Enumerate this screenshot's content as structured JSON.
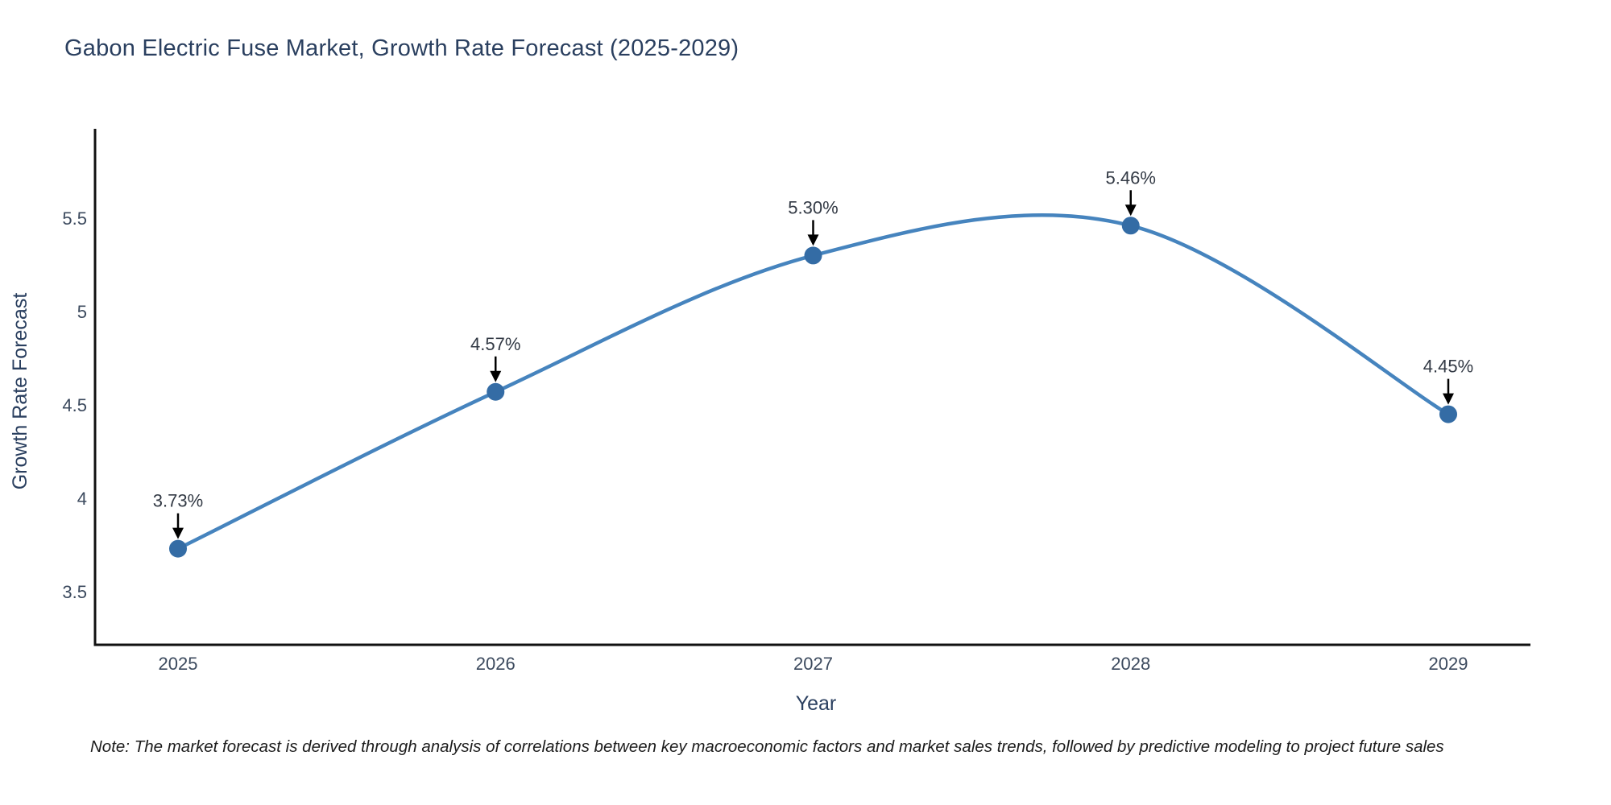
{
  "note": "Note: The market forecast is derived through analysis of correlations between key macroeconomic factors and market sales trends, followed by predictive modeling to project future sales",
  "chart_data": {
    "type": "line",
    "curve": "spline",
    "title": "Gabon Electric Fuse Market, Growth Rate Forecast (2025-2029)",
    "xlabel": "Year",
    "ylabel": "Growth Rate Forecast",
    "x": [
      2025,
      2026,
      2027,
      2028,
      2029
    ],
    "y": [
      3.73,
      4.57,
      5.3,
      5.46,
      4.45
    ],
    "point_labels": [
      "3.73%",
      "4.57%",
      "5.30%",
      "5.46%",
      "4.45%"
    ],
    "x_tick_labels": [
      "2025",
      "2026",
      "2027",
      "2028",
      "2029"
    ],
    "y_tick_labels": [
      "3.5",
      "4",
      "4.5",
      "5",
      "5.5"
    ],
    "y_tick_values": [
      3.5,
      4,
      4.5,
      5,
      5.5
    ],
    "ylim": [
      3.22,
      5.98
    ],
    "xlim": [
      2024.74,
      2029.26
    ],
    "grid": false,
    "legend": false,
    "colors": {
      "line": "#4684be",
      "marker": "#346ca5",
      "axis": "#111111",
      "title_text": "#2a3f5f",
      "tick_text": "#3c4a5e",
      "annotation_text": "#333a45",
      "arrow": "#000000",
      "background": "#ffffff"
    }
  }
}
